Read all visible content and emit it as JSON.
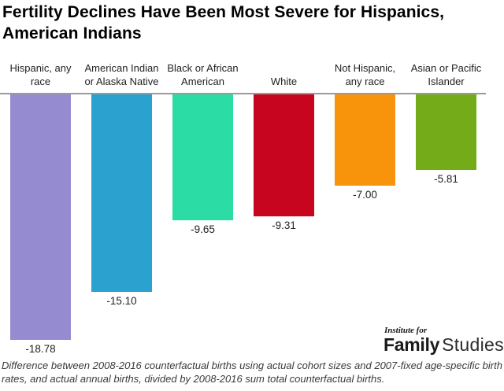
{
  "title": "Fertility Declines Have Been Most Severe for Hispanics,\nAmerican Indians",
  "chart_data": {
    "type": "bar",
    "orientation": "vertical",
    "title": "Fertility Declines Have Been Most Severe for Hispanics, American Indians",
    "categories": [
      "Hispanic, any race",
      "American Indian or Alaska Native",
      "Black or African American",
      "White",
      "Not Hispanic, any race",
      "Asian or Pacific Islander"
    ],
    "values": [
      -18.78,
      -15.1,
      -9.65,
      -9.31,
      -7.0,
      -5.81
    ],
    "value_labels": [
      "-18.78",
      "-15.10",
      "-9.65",
      "-9.31",
      "-7.00",
      "-5.81"
    ],
    "colors": [
      "#958BD0",
      "#2AA1CE",
      "#2BDCA4",
      "#C8051E",
      "#F8930C",
      "#73AC18"
    ],
    "baseline": 0,
    "ylim": [
      -20,
      0
    ],
    "grid": false,
    "legend": "none",
    "axis_line_color": "#9a9a9a",
    "bars_grow": "downward-from-zero-line"
  },
  "logo": {
    "top": "Institute for",
    "bold": "Family",
    "light": "Studies"
  },
  "footnote": "Difference between 2008-2016 counterfactual births using actual cohort sizes and 2007-fixed age-specific birth rates, and actual annual births, divided by 2008-2016 sum total counterfactual births."
}
